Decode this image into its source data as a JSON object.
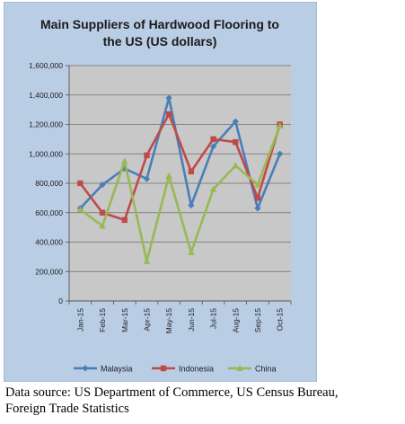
{
  "chart_data": {
    "type": "line",
    "title_lines": [
      "Main Suppliers of Hardwood Flooring to",
      "the US (US dollars)"
    ],
    "categories": [
      "Jan-15",
      "Feb-15",
      "Mar-15",
      "Apr-15",
      "May-15",
      "Jun-15",
      "Jul-15",
      "Aug-15",
      "Sep-15",
      "Oct-15"
    ],
    "y_ticks": [
      "0",
      "200,000",
      "400,000",
      "600,000",
      "800,000",
      "1,000,000",
      "1,200,000",
      "1,400,000",
      "1,600,000"
    ],
    "ylim": [
      0,
      1600000
    ],
    "grid": "horizontal",
    "legend_position": "bottom",
    "series": [
      {
        "name": "Malaysia",
        "color": "#4a7ebb",
        "marker": "diamond",
        "values": [
          630000,
          790000,
          900000,
          830000,
          1380000,
          650000,
          1050000,
          1220000,
          630000,
          1000000
        ]
      },
      {
        "name": "Indonesia",
        "color": "#be4b48",
        "marker": "square",
        "values": [
          800000,
          600000,
          550000,
          990000,
          1270000,
          880000,
          1100000,
          1080000,
          700000,
          1200000
        ]
      },
      {
        "name": "China",
        "color": "#98b954",
        "marker": "triangle",
        "values": [
          620000,
          510000,
          950000,
          270000,
          850000,
          330000,
          760000,
          920000,
          790000,
          1190000
        ]
      }
    ]
  },
  "source": {
    "line1": "Data source: US Department of Commerce, US Census Bureau,",
    "line2": "Foreign Trade Statistics"
  }
}
